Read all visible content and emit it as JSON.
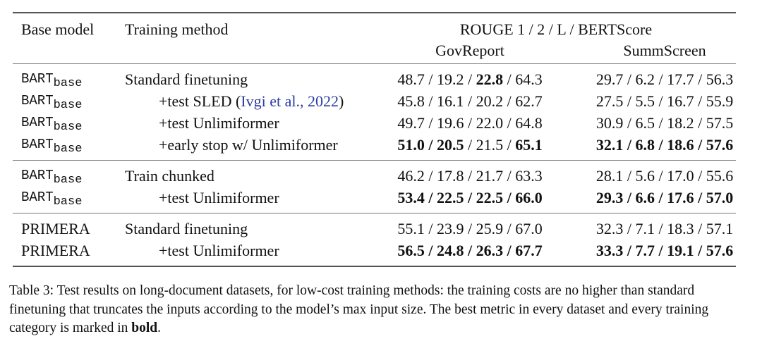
{
  "table": {
    "headers": {
      "base_model": "Base model",
      "training_method": "Training method",
      "metrics": "ROUGE 1 / 2 / L / BERTScore",
      "datasets": [
        "GovReport",
        "SummScreen"
      ]
    },
    "groups": [
      [
        {
          "base": "BART",
          "sub": "base",
          "method": "Standard finetuning",
          "indent": false,
          "gov": [
            {
              "v": "48.7",
              "b": false
            },
            {
              "v": "19.2",
              "b": false
            },
            {
              "v": "22.8",
              "b": true
            },
            {
              "v": "64.3",
              "b": false
            }
          ],
          "summ": [
            {
              "v": "29.7",
              "b": false
            },
            {
              "v": "6.2",
              "b": false
            },
            {
              "v": "17.7",
              "b": false
            },
            {
              "v": "56.3",
              "b": false
            }
          ]
        },
        {
          "base": "BART",
          "sub": "base",
          "method": "+test SLED (",
          "link": "Ivgi et al., 2022",
          "after": ")",
          "indent": true,
          "gov": [
            {
              "v": "45.8",
              "b": false
            },
            {
              "v": "16.1",
              "b": false
            },
            {
              "v": "20.2",
              "b": false
            },
            {
              "v": "62.7",
              "b": false
            }
          ],
          "summ": [
            {
              "v": "27.5",
              "b": false
            },
            {
              "v": "5.5",
              "b": false
            },
            {
              "v": "16.7",
              "b": false
            },
            {
              "v": "55.9",
              "b": false
            }
          ]
        },
        {
          "base": "BART",
          "sub": "base",
          "method": "+test Unlimiformer",
          "indent": true,
          "gov": [
            {
              "v": "49.7",
              "b": false
            },
            {
              "v": "19.6",
              "b": false
            },
            {
              "v": "22.0",
              "b": false
            },
            {
              "v": "64.8",
              "b": false
            }
          ],
          "summ": [
            {
              "v": "30.9",
              "b": false
            },
            {
              "v": "6.5",
              "b": false
            },
            {
              "v": "18.2",
              "b": false
            },
            {
              "v": "57.5",
              "b": false
            }
          ]
        },
        {
          "base": "BART",
          "sub": "base",
          "method": "+early stop w/ Unlimiformer",
          "indent": true,
          "gov": [
            {
              "v": "51.0",
              "b": true
            },
            {
              "v": "20.5",
              "b": true
            },
            {
              "v": "21.5",
              "b": false
            },
            {
              "v": "65.1",
              "b": true
            }
          ],
          "summ": [
            {
              "v": "32.1",
              "b": true
            },
            {
              "v": "6.8",
              "b": true
            },
            {
              "v": "18.6",
              "b": true
            },
            {
              "v": "57.6",
              "b": true
            }
          ]
        }
      ],
      [
        {
          "base": "BART",
          "sub": "base",
          "method": "Train chunked",
          "indent": false,
          "gov": [
            {
              "v": "46.2",
              "b": false
            },
            {
              "v": "17.8",
              "b": false
            },
            {
              "v": "21.7",
              "b": false
            },
            {
              "v": "63.3",
              "b": false
            }
          ],
          "summ": [
            {
              "v": "28.1",
              "b": false
            },
            {
              "v": "5.6",
              "b": false
            },
            {
              "v": "17.0",
              "b": false
            },
            {
              "v": "55.6",
              "b": false
            }
          ]
        },
        {
          "base": "BART",
          "sub": "base",
          "method": "+test Unlimiformer",
          "indent": true,
          "gov": [
            {
              "v": "53.4",
              "b": true
            },
            {
              "v": "22.5",
              "b": true
            },
            {
              "v": "22.5",
              "b": true
            },
            {
              "v": "66.0",
              "b": true
            }
          ],
          "summ": [
            {
              "v": "29.3",
              "b": true
            },
            {
              "v": "6.6",
              "b": true
            },
            {
              "v": "17.6",
              "b": true
            },
            {
              "v": "57.0",
              "b": true
            }
          ]
        }
      ],
      [
        {
          "base": "PRIMERA",
          "method": "Standard finetuning",
          "indent": false,
          "gov": [
            {
              "v": "55.1",
              "b": false
            },
            {
              "v": "23.9",
              "b": false
            },
            {
              "v": "25.9",
              "b": false
            },
            {
              "v": "67.0",
              "b": false
            }
          ],
          "summ": [
            {
              "v": "32.3",
              "b": false
            },
            {
              "v": "7.1",
              "b": false
            },
            {
              "v": "18.3",
              "b": false
            },
            {
              "v": "57.1",
              "b": false
            }
          ]
        },
        {
          "base": "PRIMERA",
          "method": "+test Unlimiformer",
          "indent": true,
          "gov": [
            {
              "v": "56.5",
              "b": true
            },
            {
              "v": "24.8",
              "b": true
            },
            {
              "v": "26.3",
              "b": true
            },
            {
              "v": "67.7",
              "b": true
            }
          ],
          "summ": [
            {
              "v": "33.3",
              "b": true
            },
            {
              "v": "7.7",
              "b": true
            },
            {
              "v": "19.1",
              "b": true
            },
            {
              "v": "57.6",
              "b": true
            }
          ]
        }
      ]
    ]
  },
  "caption": {
    "prefix": "Table 3: Test results on long-document datasets, for low-cost training methods: the training costs are no higher than standard finetuning that truncates the inputs according to the model’s max input size. The best metric in every dataset and every training category is marked in ",
    "bold_word": "bold",
    "suffix": "."
  }
}
